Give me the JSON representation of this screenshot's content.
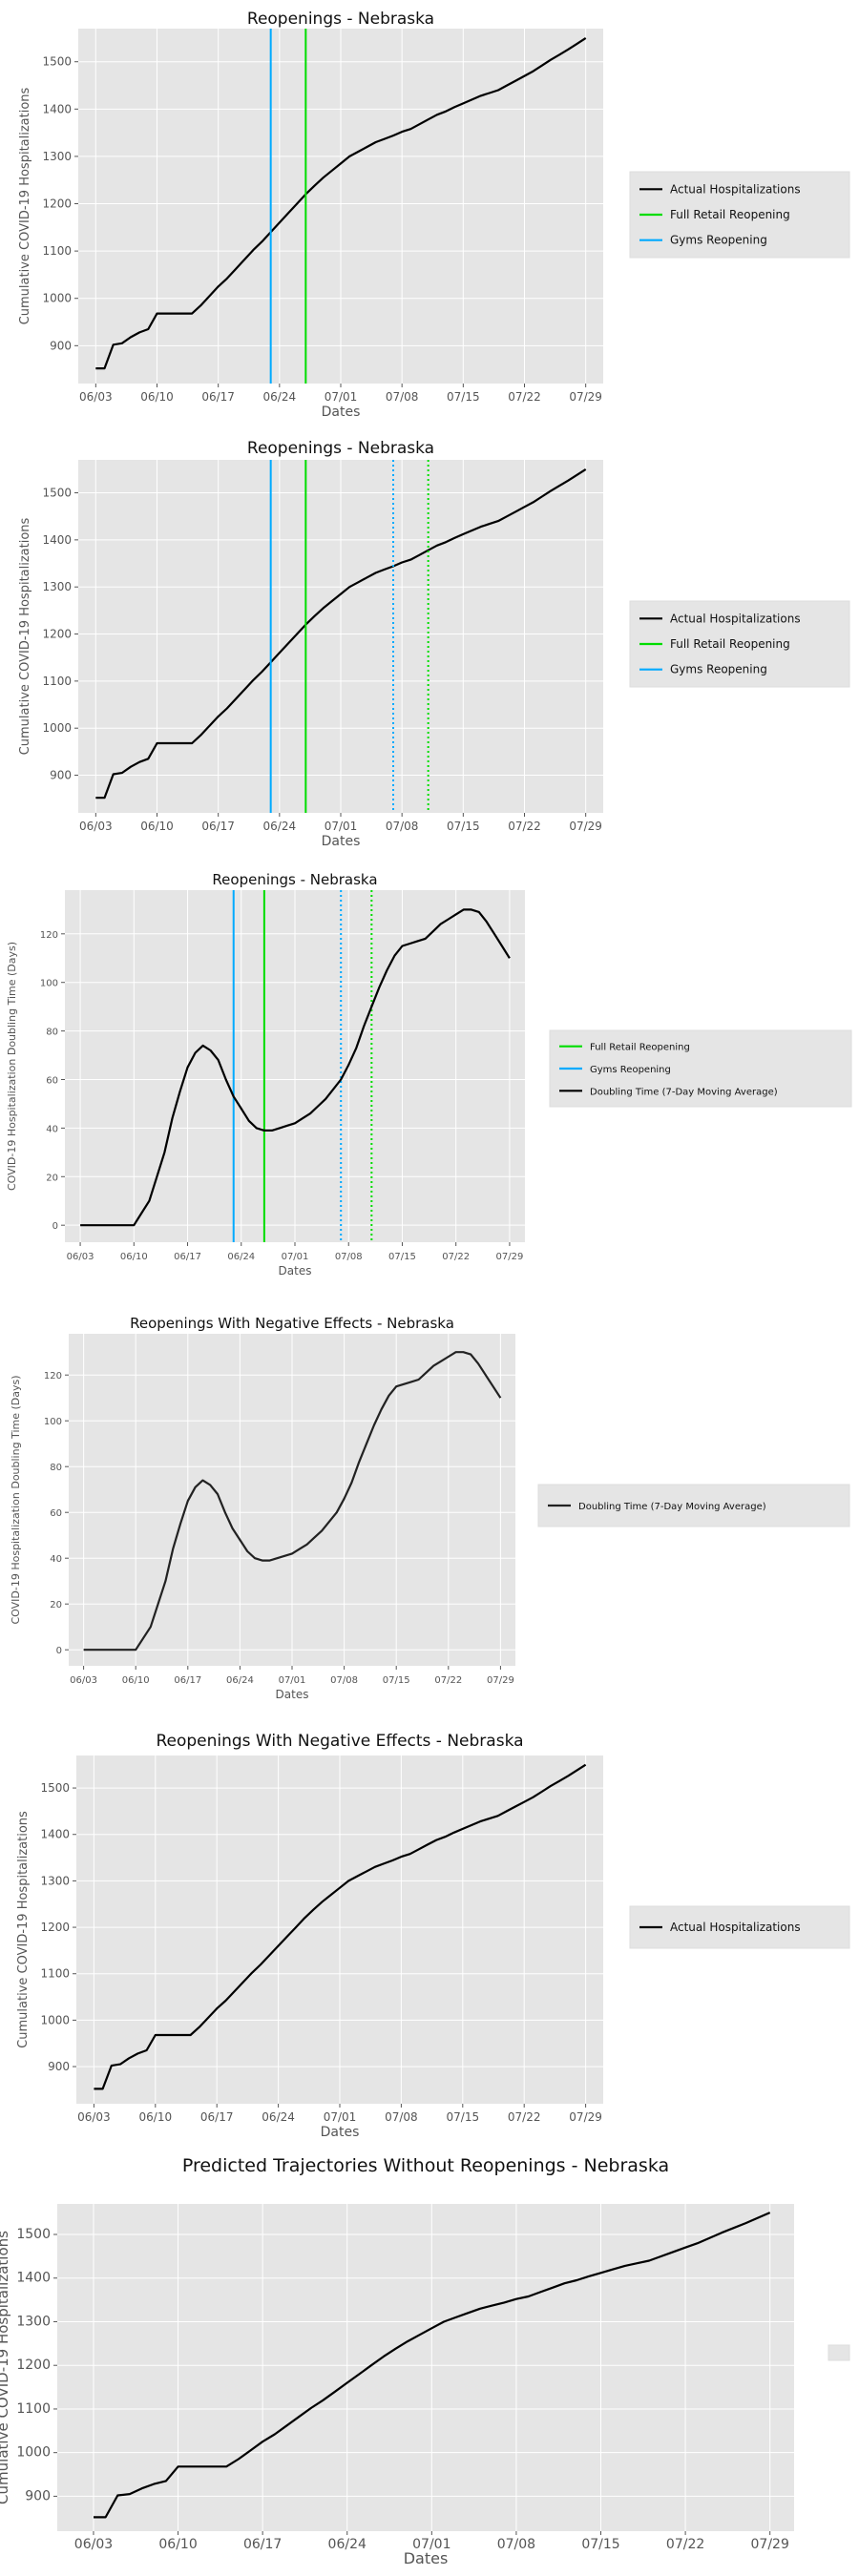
{
  "chart_data": [
    {
      "type": "line",
      "title": "Reopenings - Nebraska",
      "xlabel": "Dates",
      "ylabel": "Cumulative COVID-19 Hospitalizations",
      "x_ticks": [
        "06/03",
        "06/10",
        "06/17",
        "06/24",
        "07/01",
        "07/08",
        "07/15",
        "07/22",
        "07/29"
      ],
      "xlim": [
        "2020-06-01",
        "2020-07-31"
      ],
      "y_ticks": [
        900,
        1000,
        1100,
        1200,
        1300,
        1400,
        1500
      ],
      "ylim": [
        820,
        1570
      ],
      "grid": true,
      "legend_placement": "outside-right",
      "series": [
        {
          "name": "Actual Hospitalizations",
          "color": "#000000",
          "x": [
            "2020-06-03",
            "2020-06-04",
            "2020-06-05",
            "2020-06-06",
            "2020-06-07",
            "2020-06-08",
            "2020-06-09",
            "2020-06-10",
            "2020-06-11",
            "2020-06-12",
            "2020-06-13",
            "2020-06-14",
            "2020-06-15",
            "2020-06-16",
            "2020-06-17",
            "2020-06-18",
            "2020-06-19",
            "2020-06-20",
            "2020-06-21",
            "2020-06-22",
            "2020-06-23",
            "2020-06-24",
            "2020-06-25",
            "2020-06-26",
            "2020-06-27",
            "2020-06-28",
            "2020-06-29",
            "2020-06-30",
            "2020-07-01",
            "2020-07-02",
            "2020-07-03",
            "2020-07-04",
            "2020-07-05",
            "2020-07-06",
            "2020-07-07",
            "2020-07-08",
            "2020-07-09",
            "2020-07-10",
            "2020-07-11",
            "2020-07-12",
            "2020-07-13",
            "2020-07-14",
            "2020-07-15",
            "2020-07-16",
            "2020-07-17",
            "2020-07-18",
            "2020-07-19",
            "2020-07-20",
            "2020-07-21",
            "2020-07-22",
            "2020-07-23",
            "2020-07-24",
            "2020-07-25",
            "2020-07-26",
            "2020-07-27",
            "2020-07-28",
            "2020-07-29"
          ],
          "y": [
            852,
            852,
            902,
            905,
            918,
            928,
            935,
            968,
            968,
            968,
            968,
            968,
            985,
            1005,
            1025,
            1042,
            1062,
            1082,
            1102,
            1120,
            1140,
            1160,
            1180,
            1200,
            1220,
            1238,
            1255,
            1270,
            1285,
            1300,
            1310,
            1320,
            1330,
            1337,
            1344,
            1352,
            1358,
            1368,
            1378,
            1388,
            1395,
            1404,
            1412,
            1420,
            1428,
            1434,
            1440,
            1450,
            1460,
            1470,
            1480,
            1492,
            1504,
            1515,
            1526,
            1538,
            1550
          ]
        },
        {
          "name": "Full Retail Reopening",
          "color": "#00dd00",
          "style": "solid",
          "x_event": "2020-06-27"
        },
        {
          "name": "Gyms Reopening",
          "color": "#00aaff",
          "style": "solid",
          "x_event": "2020-06-23"
        }
      ]
    },
    {
      "type": "line",
      "title": "Reopenings - Nebraska",
      "xlabel": "Dates",
      "ylabel": "Cumulative COVID-19 Hospitalizations",
      "x_ticks": [
        "06/03",
        "06/10",
        "06/17",
        "06/24",
        "07/01",
        "07/08",
        "07/15",
        "07/22",
        "07/29"
      ],
      "xlim": [
        "2020-06-01",
        "2020-07-31"
      ],
      "y_ticks": [
        900,
        1000,
        1100,
        1200,
        1300,
        1400,
        1500
      ],
      "ylim": [
        820,
        1570
      ],
      "grid": true,
      "legend_placement": "outside-right",
      "series": [
        {
          "name": "Actual Hospitalizations",
          "color": "#000000",
          "same_as": 0
        },
        {
          "name": "Full Retail Reopening",
          "color": "#00dd00",
          "style": "solid",
          "x_event": "2020-06-27",
          "lag_x_event": "2020-07-11"
        },
        {
          "name": "Gyms Reopening",
          "color": "#00aaff",
          "style": "solid",
          "x_event": "2020-06-23",
          "lag_x_event": "2020-07-07"
        }
      ]
    },
    {
      "type": "line",
      "title": "Reopenings - Nebraska",
      "xlabel": "Dates",
      "ylabel": "COVID-19 Hospitalization Doubling Time (Days)",
      "x_ticks": [
        "06/03",
        "06/10",
        "06/17",
        "06/24",
        "07/01",
        "07/08",
        "07/15",
        "07/22",
        "07/29"
      ],
      "xlim": [
        "2020-06-01",
        "2020-07-31"
      ],
      "y_ticks": [
        0,
        20,
        40,
        60,
        80,
        100,
        120
      ],
      "ylim": [
        -7,
        138
      ],
      "grid": true,
      "legend_placement": "outside-right",
      "series": [
        {
          "name": "Full Retail Reopening",
          "color": "#00dd00",
          "style": "solid",
          "x_event": "2020-06-27",
          "lag_x_event": "2020-07-11"
        },
        {
          "name": "Gyms Reopening",
          "color": "#00aaff",
          "style": "solid",
          "x_event": "2020-06-23",
          "lag_x_event": "2020-07-07"
        },
        {
          "name": "Doubling Time (7-Day Moving Average)",
          "color": "#000000",
          "x": [
            "2020-06-03",
            "2020-06-05",
            "2020-06-07",
            "2020-06-09",
            "2020-06-10",
            "2020-06-11",
            "2020-06-12",
            "2020-06-13",
            "2020-06-14",
            "2020-06-15",
            "2020-06-16",
            "2020-06-17",
            "2020-06-18",
            "2020-06-19",
            "2020-06-20",
            "2020-06-21",
            "2020-06-22",
            "2020-06-23",
            "2020-06-24",
            "2020-06-25",
            "2020-06-26",
            "2020-06-27",
            "2020-06-28",
            "2020-06-29",
            "2020-06-30",
            "2020-07-01",
            "2020-07-02",
            "2020-07-03",
            "2020-07-04",
            "2020-07-05",
            "2020-07-06",
            "2020-07-07",
            "2020-07-08",
            "2020-07-09",
            "2020-07-10",
            "2020-07-11",
            "2020-07-12",
            "2020-07-13",
            "2020-07-14",
            "2020-07-15",
            "2020-07-16",
            "2020-07-17",
            "2020-07-18",
            "2020-07-19",
            "2020-07-20",
            "2020-07-21",
            "2020-07-22",
            "2020-07-23",
            "2020-07-24",
            "2020-07-25",
            "2020-07-26",
            "2020-07-27",
            "2020-07-28",
            "2020-07-29"
          ],
          "y": [
            0,
            0,
            0,
            0,
            0,
            5,
            10,
            20,
            30,
            44,
            55,
            65,
            71,
            74,
            72,
            68,
            60,
            53,
            48,
            43,
            40,
            39,
            39,
            40,
            41,
            42,
            44,
            46,
            49,
            52,
            56,
            60,
            66,
            73,
            82,
            90,
            98,
            105,
            111,
            115,
            116,
            117,
            118,
            121,
            124,
            126,
            128,
            130,
            130,
            129,
            125,
            120,
            115,
            110
          ]
        }
      ]
    },
    {
      "type": "line",
      "title": "Reopenings With Negative Effects - Nebraska",
      "xlabel": "Dates",
      "ylabel": "COVID-19 Hospitalization Doubling Time (Days)",
      "x_ticks": [
        "06/03",
        "06/10",
        "06/17",
        "06/24",
        "07/01",
        "07/08",
        "07/15",
        "07/22",
        "07/29"
      ],
      "xlim": [
        "2020-06-01",
        "2020-07-31"
      ],
      "y_ticks": [
        0,
        20,
        40,
        60,
        80,
        100,
        120
      ],
      "ylim": [
        -7,
        138
      ],
      "grid": true,
      "legend_placement": "outside-right",
      "series": [
        {
          "name": "Doubling Time (7-Day Moving Average)",
          "color": "#222222",
          "same_as": 2
        }
      ]
    },
    {
      "type": "line",
      "title": "Reopenings With Negative Effects - Nebraska",
      "xlabel": "Dates",
      "ylabel": "Cumulative COVID-19 Hospitalizations",
      "x_ticks": [
        "06/03",
        "06/10",
        "06/17",
        "06/24",
        "07/01",
        "07/08",
        "07/15",
        "07/22",
        "07/29"
      ],
      "xlim": [
        "2020-06-01",
        "2020-07-31"
      ],
      "y_ticks": [
        900,
        1000,
        1100,
        1200,
        1300,
        1400,
        1500
      ],
      "ylim": [
        820,
        1570
      ],
      "grid": true,
      "legend_placement": "outside-right",
      "series": [
        {
          "name": "Actual Hospitalizations",
          "color": "#000000",
          "same_as": 0
        }
      ]
    },
    {
      "type": "line",
      "title": "Predicted Trajectories Without Reopenings - Nebraska",
      "xlabel": "Dates",
      "ylabel": "Cumulative COVID-19 Hospitalizations",
      "x_ticks": [
        "06/03",
        "06/10",
        "06/17",
        "06/24",
        "07/01",
        "07/08",
        "07/15",
        "07/22",
        "07/29"
      ],
      "xlim": [
        "2020-05-31",
        "2020-07-31"
      ],
      "y_ticks": [
        900,
        1000,
        1100,
        1200,
        1300,
        1400,
        1500
      ],
      "ylim": [
        820,
        1570
      ],
      "grid": true,
      "legend_placement": "outside-right",
      "legend_empty": true,
      "series": [
        {
          "name": "",
          "color": "#000000",
          "same_as": 0
        }
      ]
    }
  ]
}
